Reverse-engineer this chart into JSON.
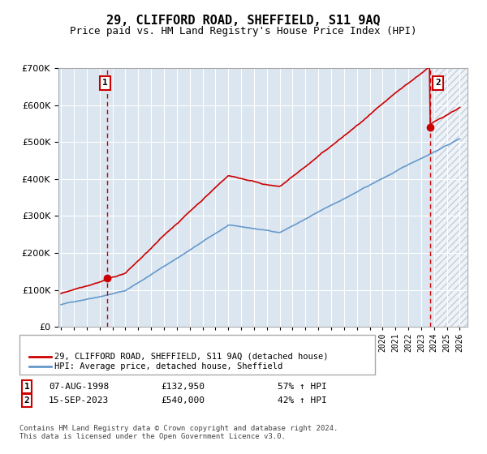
{
  "title": "29, CLIFFORD ROAD, SHEFFIELD, S11 9AQ",
  "subtitle": "Price paid vs. HM Land Registry's House Price Index (HPI)",
  "background_color": "#dce6f0",
  "red_color": "#cc0000",
  "blue_color": "#6699cc",
  "annotation1_date": "07-AUG-1998",
  "annotation1_price": 132950,
  "annotation1_text": "57% ↑ HPI",
  "annotation2_date": "15-SEP-2023",
  "annotation2_price": 540000,
  "annotation2_text": "42% ↑ HPI",
  "legend_label_red": "29, CLIFFORD ROAD, SHEFFIELD, S11 9AQ (detached house)",
  "legend_label_blue": "HPI: Average price, detached house, Sheffield",
  "footer": "Contains HM Land Registry data © Crown copyright and database right 2024.\nThis data is licensed under the Open Government Licence v3.0.",
  "ylim": [
    0,
    700000
  ]
}
